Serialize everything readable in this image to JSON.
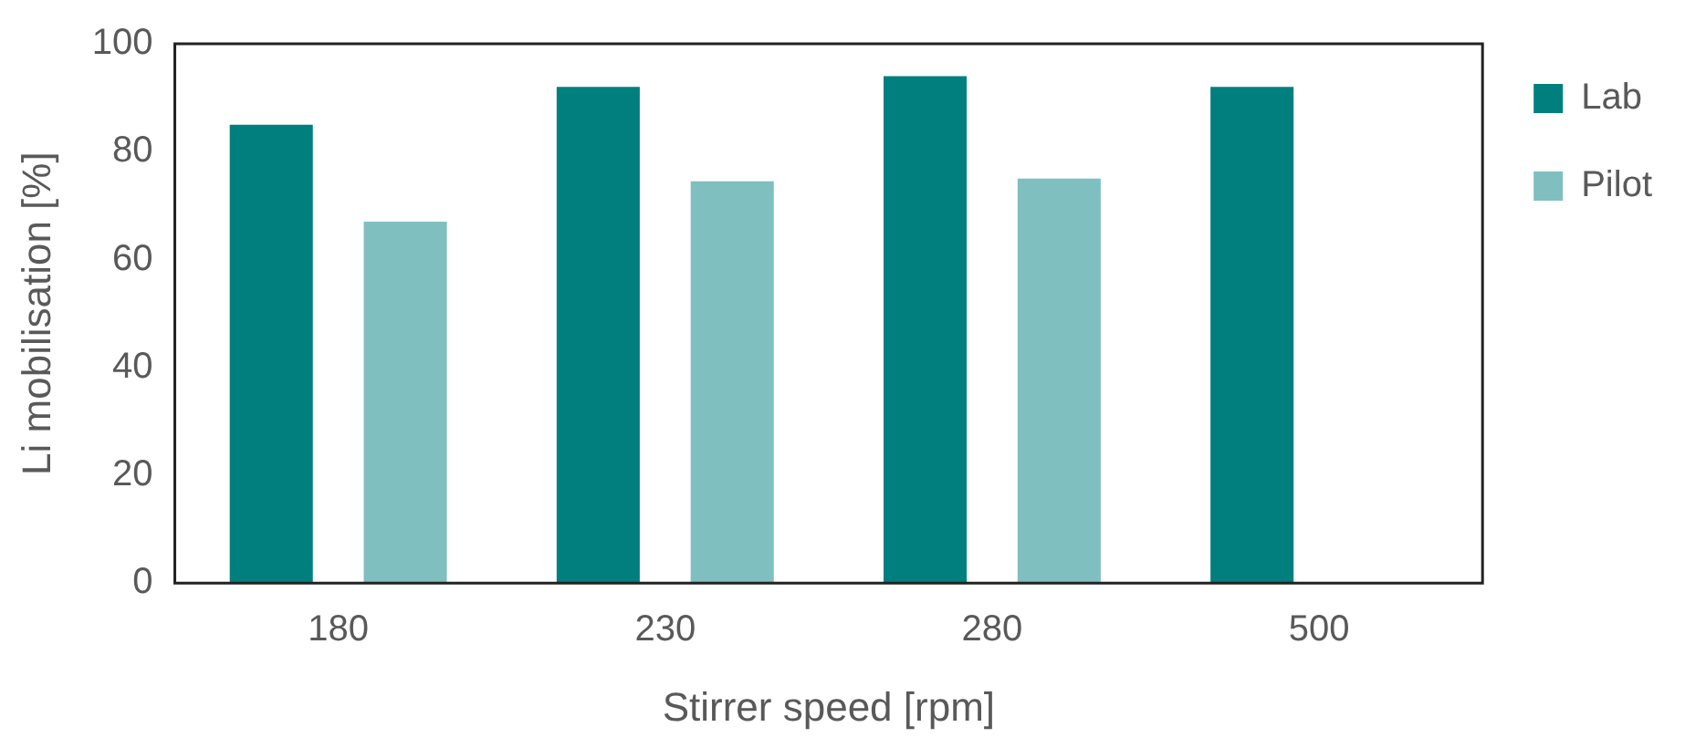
{
  "chart_data": {
    "type": "bar",
    "xlabel": "Stirrer speed [rpm]",
    "ylabel": "Li mobilisation [%]",
    "categories": [
      "180",
      "230",
      "280",
      "500"
    ],
    "series": [
      {
        "name": "Lab",
        "color": "#007f7f",
        "values": [
          85,
          92,
          94,
          92
        ]
      },
      {
        "name": "Pilot",
        "color": "#80bfbf",
        "values": [
          67,
          74.5,
          75,
          null
        ]
      }
    ],
    "ylim": [
      0,
      100
    ],
    "yticks": [
      0,
      20,
      40,
      60,
      80,
      100
    ],
    "grid": false,
    "legend": "right"
  }
}
